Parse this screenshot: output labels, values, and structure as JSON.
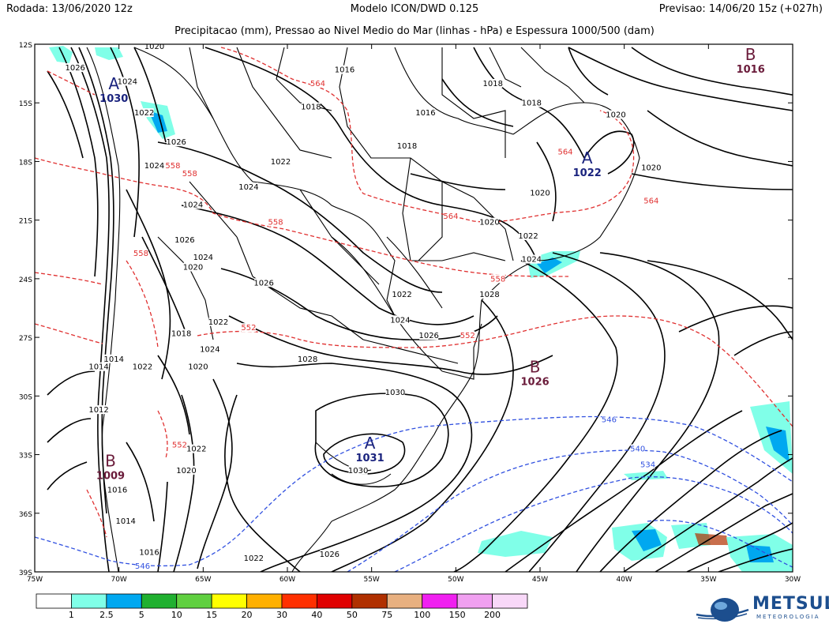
{
  "header": {
    "left": "Rodada: 13/06/2020 12z",
    "center": "Modelo ICON/DWD 0.125",
    "right": "Previsao: 14/06/20 15z (+027h)",
    "subtitle": "Precipitacao (mm), Pressao ao Nivel Medio do Mar (linhas - hPa) e Espessura 1000/500 (dam)"
  },
  "axes": {
    "lat_labels": [
      "12S",
      "15S",
      "18S",
      "21S",
      "24S",
      "27S",
      "30S",
      "33S",
      "36S",
      "39S"
    ],
    "lon_labels": [
      "75W",
      "70W",
      "65W",
      "60W",
      "55W",
      "50W",
      "45W",
      "40W",
      "35W",
      "30W"
    ]
  },
  "pressure_centers": [
    {
      "letter": "A",
      "value": "1030",
      "lon": -70.3,
      "lat": -14.3,
      "type": "high"
    },
    {
      "letter": "A",
      "value": "1022",
      "lon": -42.2,
      "lat": -18.1,
      "type": "high"
    },
    {
      "letter": "A",
      "value": "1031",
      "lon": -55.1,
      "lat": -32.7,
      "type": "high"
    },
    {
      "letter": "B",
      "value": "1016",
      "lon": -32.5,
      "lat": -12.8,
      "type": "low"
    },
    {
      "letter": "B",
      "value": "1026",
      "lon": -45.3,
      "lat": -28.8,
      "type": "low"
    },
    {
      "letter": "B",
      "value": "1009",
      "lon": -70.5,
      "lat": -33.6,
      "type": "low"
    }
  ],
  "isobar_labels": [
    {
      "text": "1020",
      "lon": -67.9,
      "lat": -12.2
    },
    {
      "text": "1026",
      "lon": -72.6,
      "lat": -13.3
    },
    {
      "text": "1024",
      "lon": -69.5,
      "lat": -14.0
    },
    {
      "text": "1016",
      "lon": -56.6,
      "lat": -13.4
    },
    {
      "text": "1018",
      "lon": -47.8,
      "lat": -14.1
    },
    {
      "text": "1018",
      "lon": -45.5,
      "lat": -15.1
    },
    {
      "text": "1018",
      "lon": -58.6,
      "lat": -15.3
    },
    {
      "text": "1016",
      "lon": -51.8,
      "lat": -15.6
    },
    {
      "text": "1020",
      "lon": -40.5,
      "lat": -15.7
    },
    {
      "text": "1022",
      "lon": -68.5,
      "lat": -15.6
    },
    {
      "text": "1026",
      "lon": -66.6,
      "lat": -17.1
    },
    {
      "text": "1018",
      "lon": -52.9,
      "lat": -17.3
    },
    {
      "text": "1024",
      "lon": -67.9,
      "lat": -18.3
    },
    {
      "text": "1022",
      "lon": -60.4,
      "lat": -18.1
    },
    {
      "text": "1020",
      "lon": -38.4,
      "lat": -18.4
    },
    {
      "text": "1024",
      "lon": -62.3,
      "lat": -19.4
    },
    {
      "text": "1020",
      "lon": -45.0,
      "lat": -19.7
    },
    {
      "text": "1024",
      "lon": -65.6,
      "lat": -20.3
    },
    {
      "text": "1020",
      "lon": -48.0,
      "lat": -21.2
    },
    {
      "text": "1022",
      "lon": -45.7,
      "lat": -21.9
    },
    {
      "text": "1026",
      "lon": -66.1,
      "lat": -22.1
    },
    {
      "text": "1024",
      "lon": -65.0,
      "lat": -23.0
    },
    {
      "text": "1024",
      "lon": -45.5,
      "lat": -23.1
    },
    {
      "text": "1020",
      "lon": -65.6,
      "lat": -23.5
    },
    {
      "text": "1026",
      "lon": -61.4,
      "lat": -24.3
    },
    {
      "text": "1022",
      "lon": -53.2,
      "lat": -24.9
    },
    {
      "text": "1028",
      "lon": -48.0,
      "lat": -24.9
    },
    {
      "text": "1024",
      "lon": -53.3,
      "lat": -26.2
    },
    {
      "text": "1022",
      "lon": -64.1,
      "lat": -26.3
    },
    {
      "text": "1018",
      "lon": -66.3,
      "lat": -26.9
    },
    {
      "text": "1026",
      "lon": -51.6,
      "lat": -27.0
    },
    {
      "text": "1024",
      "lon": -64.6,
      "lat": -27.7
    },
    {
      "text": "1014",
      "lon": -70.3,
      "lat": -28.2
    },
    {
      "text": "1022",
      "lon": -68.6,
      "lat": -28.6
    },
    {
      "text": "1020",
      "lon": -65.3,
      "lat": -28.6
    },
    {
      "text": "1014",
      "lon": -71.2,
      "lat": -28.6
    },
    {
      "text": "1028",
      "lon": -58.8,
      "lat": -28.2
    },
    {
      "text": "1030",
      "lon": -53.6,
      "lat": -29.9
    },
    {
      "text": "1012",
      "lon": -71.2,
      "lat": -30.8
    },
    {
      "text": "1022",
      "lon": -65.4,
      "lat": -32.8
    },
    {
      "text": "1030",
      "lon": -55.8,
      "lat": -33.9
    },
    {
      "text": "1020",
      "lon": -66.0,
      "lat": -33.9
    },
    {
      "text": "1016",
      "lon": -70.1,
      "lat": -34.9
    },
    {
      "text": "1014",
      "lon": -69.6,
      "lat": -36.5
    },
    {
      "text": "1016",
      "lon": -68.2,
      "lat": -38.1
    },
    {
      "text": "1026",
      "lon": -57.5,
      "lat": -38.2
    },
    {
      "text": "1022",
      "lon": -62.0,
      "lat": -38.4
    }
  ],
  "thickness_labels": [
    {
      "text": "564",
      "lon": -58.2,
      "lat": -14.1,
      "color": "#e03030"
    },
    {
      "text": "564",
      "lon": -43.5,
      "lat": -17.6,
      "color": "#e03030"
    },
    {
      "text": "558",
      "lon": -66.8,
      "lat": -18.3,
      "color": "#e03030"
    },
    {
      "text": "558",
      "lon": -65.8,
      "lat": -18.7,
      "color": "#e03030"
    },
    {
      "text": "564",
      "lon": -38.4,
      "lat": -20.1,
      "color": "#e03030"
    },
    {
      "text": "564",
      "lon": -50.3,
      "lat": -20.9,
      "color": "#e03030"
    },
    {
      "text": "558",
      "lon": -60.7,
      "lat": -21.2,
      "color": "#e03030"
    },
    {
      "text": "558",
      "lon": -68.7,
      "lat": -22.8,
      "color": "#e03030"
    },
    {
      "text": "558",
      "lon": -47.5,
      "lat": -24.1,
      "color": "#e03030"
    },
    {
      "text": "552",
      "lon": -62.3,
      "lat": -26.6,
      "color": "#e03030"
    },
    {
      "text": "552",
      "lon": -49.3,
      "lat": -27.0,
      "color": "#e03030"
    },
    {
      "text": "552",
      "lon": -66.4,
      "lat": -32.6,
      "color": "#e03030"
    },
    {
      "text": "546",
      "lon": -40.9,
      "lat": -31.3,
      "color": "#3050e0"
    },
    {
      "text": "540",
      "lon": -39.2,
      "lat": -32.8,
      "color": "#3050e0"
    },
    {
      "text": "534",
      "lon": -38.6,
      "lat": -33.6,
      "color": "#3050e0"
    },
    {
      "text": "546",
      "lon": -68.6,
      "lat": -38.8,
      "color": "#3050e0"
    }
  ],
  "colorbar": {
    "labels": [
      "1",
      "2.5",
      "5",
      "10",
      "15",
      "20",
      "30",
      "40",
      "50",
      "75",
      "100",
      "150",
      "200"
    ],
    "colors": [
      "#ffffff",
      "#80ffe8",
      "#00a8f0",
      "#20b030",
      "#60d040",
      "#ffff00",
      "#ffb000",
      "#ff3000",
      "#e00000",
      "#b03000",
      "#e8b080",
      "#f020f0",
      "#f0a0f0",
      "#f8d8f8"
    ]
  },
  "logo": {
    "name": "METSUL",
    "sub": "METEOROLOGIA"
  }
}
